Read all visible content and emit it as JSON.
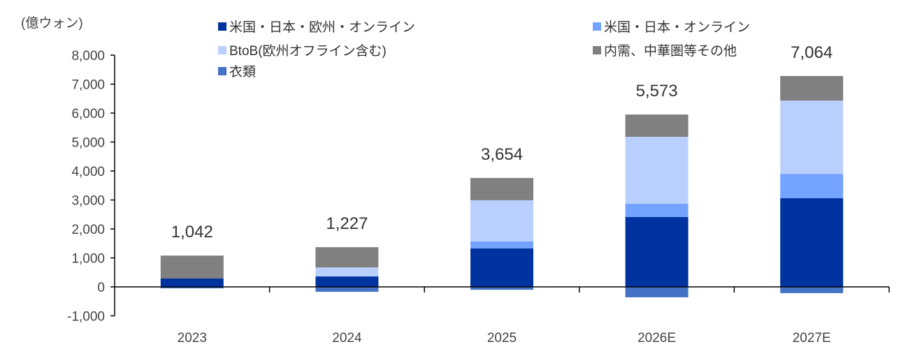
{
  "chart_data": {
    "type": "bar",
    "stacked": true,
    "title": "",
    "ylabel": "(億ウォン)",
    "xlabel": "",
    "ylim": [
      -1000,
      8000
    ],
    "yticks": [
      -1000,
      0,
      1000,
      2000,
      3000,
      4000,
      5000,
      6000,
      7000,
      8000
    ],
    "ytick_labels": [
      "-1,000",
      "0",
      "1,000",
      "2,000",
      "3,000",
      "4,000",
      "5,000",
      "6,000",
      "7,000",
      "8,000"
    ],
    "grid": false,
    "legend_position": "top",
    "categories": [
      "2023",
      "2024",
      "2025",
      "2026E",
      "2027E"
    ],
    "series": [
      {
        "name": "米国・日本・欧州・オンライン",
        "color": "#0033A0",
        "values": [
          290,
          360,
          1330,
          2410,
          3060
        ]
      },
      {
        "name": "米国・日本・オンライン",
        "color": "#73A2FF",
        "values": [
          0,
          0,
          240,
          460,
          840
        ]
      },
      {
        "name": "BtoB(欧州オフライン含む)",
        "color": "#B9D0FF",
        "values": [
          0,
          310,
          1420,
          2310,
          2530
        ]
      },
      {
        "name": "内需、中華圏等その他",
        "color": "#808080",
        "values": [
          790,
          700,
          770,
          770,
          850
        ]
      },
      {
        "name": "衣類",
        "color": "#4472C4",
        "values": [
          -50,
          -170,
          -100,
          -360,
          -215
        ]
      }
    ],
    "totals": [
      1042,
      1227,
      3654,
      5573,
      7064
    ],
    "total_labels": [
      "1,042",
      "1,227",
      "3,654",
      "5,573",
      "7,064"
    ]
  },
  "legend": {
    "items": [
      {
        "label": "米国・日本・欧州・オンライン",
        "color": "#0033A0"
      },
      {
        "label": "米国・日本・オンライン",
        "color": "#73A2FF"
      },
      {
        "label": "BtoB(欧州オフライン含む)",
        "color": "#B9D0FF"
      },
      {
        "label": "内需、中華圏等その他",
        "color": "#808080"
      },
      {
        "label": "衣類",
        "color": "#4472C4"
      }
    ]
  },
  "unit_label": "(億ウォン)"
}
